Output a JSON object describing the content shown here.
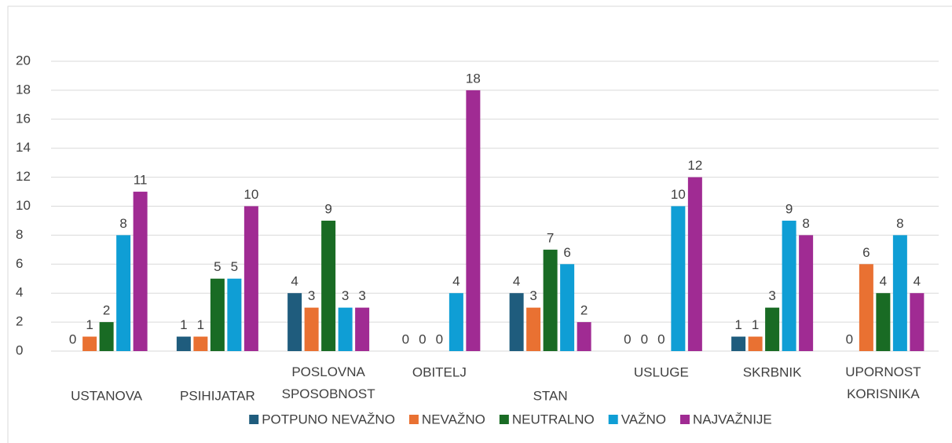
{
  "chart_data": {
    "type": "bar",
    "categories": [
      "USTANOVA",
      "PSIHIJATAR",
      "POSLOVNA SPOSOBNOST",
      "OBITELJ",
      "STAN",
      "USLUGE",
      "SKRBNIK",
      "UPORNOST KORISNIKA"
    ],
    "series": [
      {
        "name": "POTPUNO NEVAŽNO",
        "color": "#1f5c7d",
        "values": [
          0,
          1,
          4,
          0,
          4,
          0,
          1,
          0
        ]
      },
      {
        "name": "NEVAŽNO",
        "color": "#e97132",
        "values": [
          1,
          1,
          3,
          0,
          3,
          0,
          1,
          6
        ]
      },
      {
        "name": "NEUTRALNO",
        "color": "#196b24",
        "values": [
          2,
          5,
          9,
          0,
          7,
          0,
          3,
          4
        ]
      },
      {
        "name": "VAŽNO",
        "color": "#0f9ed5",
        "values": [
          8,
          5,
          3,
          4,
          6,
          10,
          9,
          8
        ]
      },
      {
        "name": "NAJVAŽNIJE",
        "color": "#a02b93",
        "values": [
          11,
          10,
          3,
          18,
          2,
          12,
          8,
          4
        ]
      }
    ],
    "ylim": [
      0,
      20
    ],
    "yticks": [
      0,
      2,
      4,
      6,
      8,
      10,
      12,
      14,
      16,
      18,
      20
    ],
    "grid": true,
    "legend": "bottom"
  }
}
